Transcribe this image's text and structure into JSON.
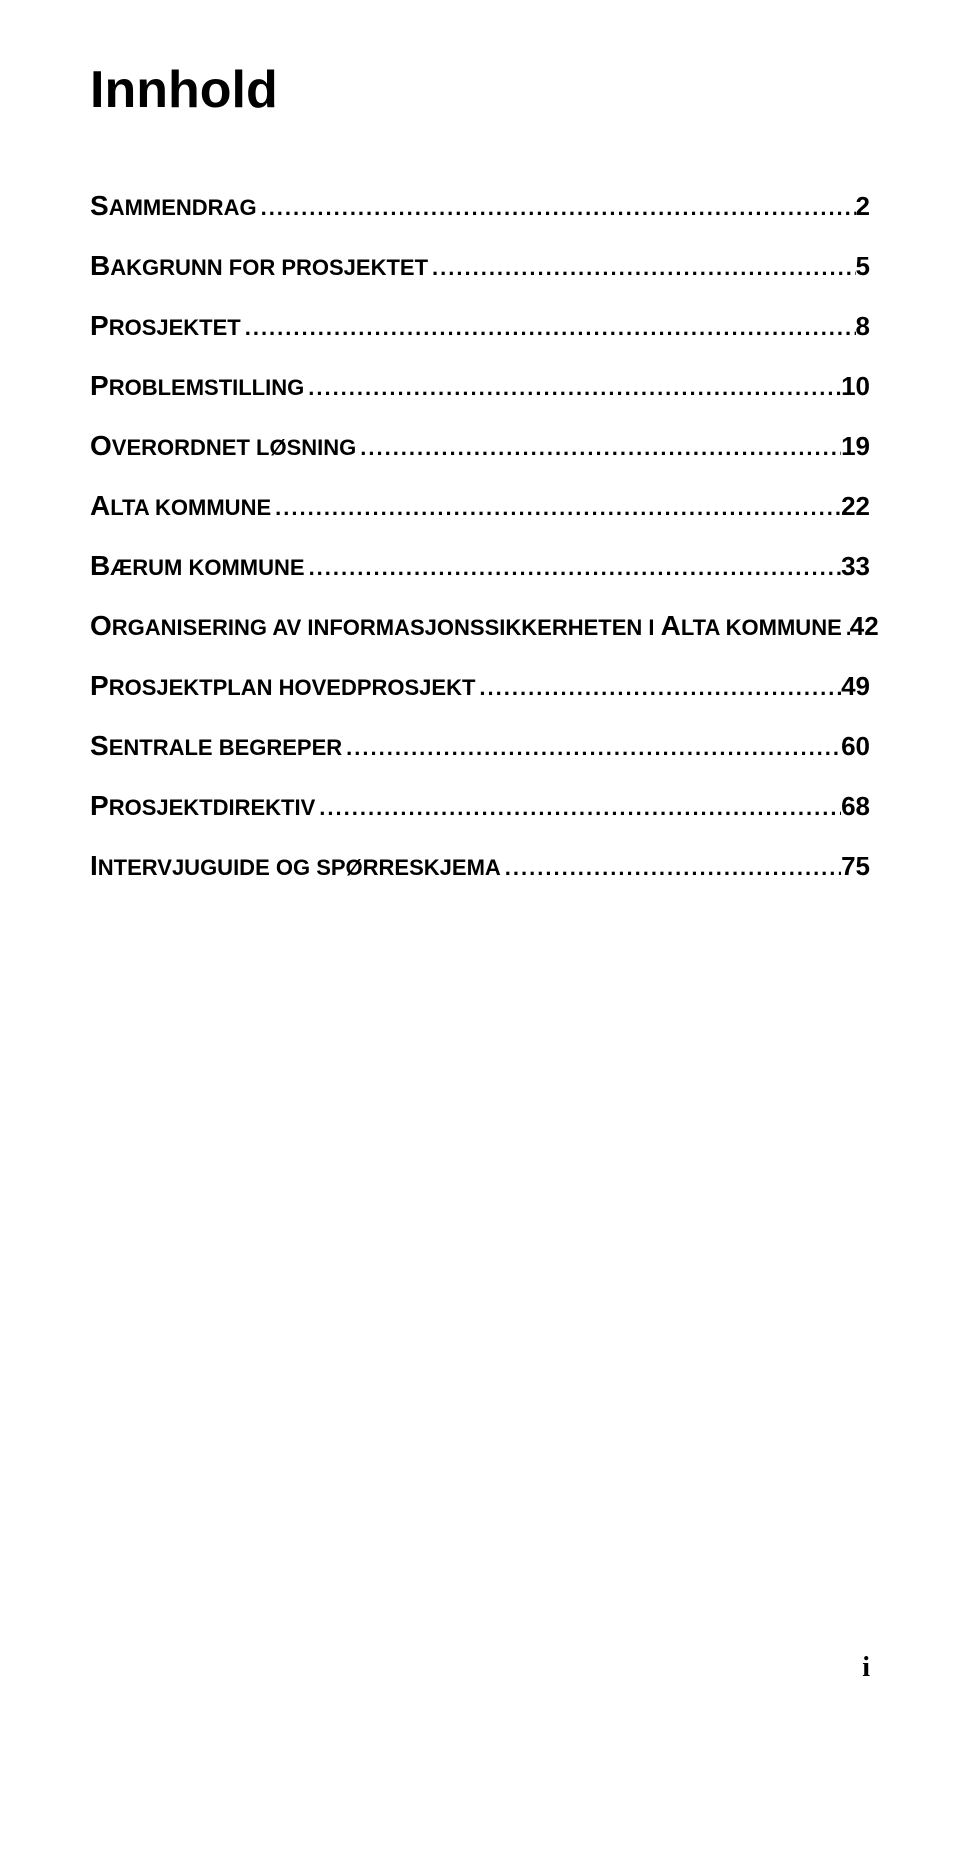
{
  "title": "Innhold",
  "toc": [
    {
      "label_first": "S",
      "label_rest": "AMMENDRAG",
      "page": "2"
    },
    {
      "label_first": "B",
      "label_rest": "AKGRUNN FOR PROSJEKTET",
      "page": "5"
    },
    {
      "label_first": "P",
      "label_rest": "ROSJEKTET",
      "page": "8"
    },
    {
      "label_first": "P",
      "label_rest": "ROBLEMSTILLING",
      "page": "10"
    },
    {
      "label_first": "O",
      "label_rest": "VERORDNET LØSNING",
      "page": "19"
    },
    {
      "label_first": "A",
      "label_rest": "LTA KOMMUNE",
      "page": "22"
    },
    {
      "label_first": "B",
      "label_rest": "ÆRUM KOMMUNE",
      "page": "33"
    },
    {
      "label_first": "O",
      "label_rest": "RGANISERING AV INFORMASJONSSIKKERHETEN I ",
      "extra_first": "A",
      "extra_rest": "LTA KOMMUNE",
      "page": "42"
    },
    {
      "label_first": "P",
      "label_rest": "ROSJEKTPLAN HOVEDPROSJEKT",
      "page": "49"
    },
    {
      "label_first": "S",
      "label_rest": "ENTRALE BEGREPER",
      "page": "60"
    },
    {
      "label_first": "P",
      "label_rest": "ROSJEKTDIREKTIV",
      "page": "68"
    },
    {
      "label_first": "I",
      "label_rest": "NTERVJUGUIDE OG SPØRRESKJEMA",
      "page": "75"
    }
  ],
  "footer": "i",
  "colors": {
    "background": "#ffffff",
    "text": "#000000"
  }
}
